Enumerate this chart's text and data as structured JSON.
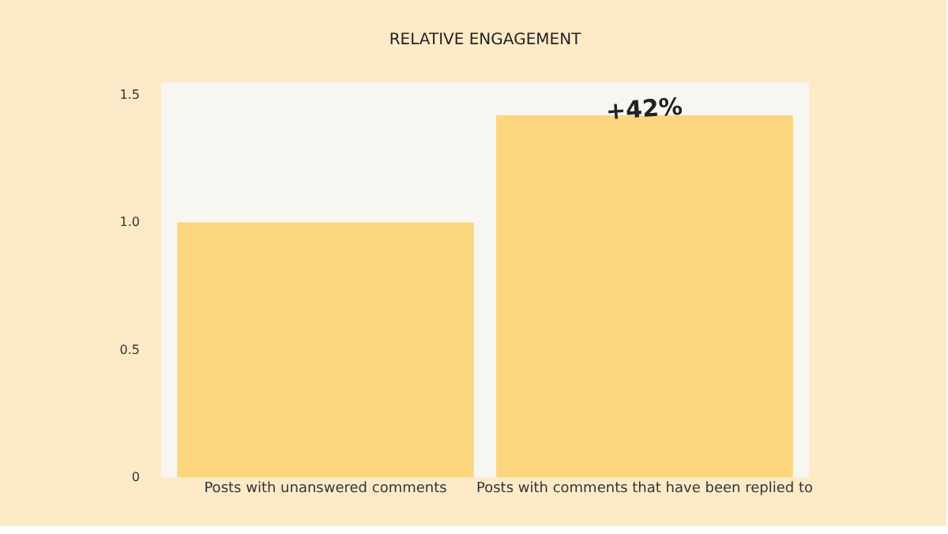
{
  "chart_data": {
    "type": "bar",
    "title": "RELATIVE ENGAGEMENT",
    "categories": [
      "Posts with unanswered comments",
      "Posts with comments that have been replied to"
    ],
    "values": [
      1.0,
      1.42
    ],
    "color": "#fdd57e",
    "ylim": [
      0,
      1.55
    ],
    "yticks": [
      0,
      0.5,
      {
        "value": 1,
        "label": "1.0"
      },
      1.5
    ],
    "grid": false,
    "annotations": [
      {
        "text": "+42%",
        "x": "Posts with comments that have been replied to",
        "y": 1.42
      }
    ]
  }
}
